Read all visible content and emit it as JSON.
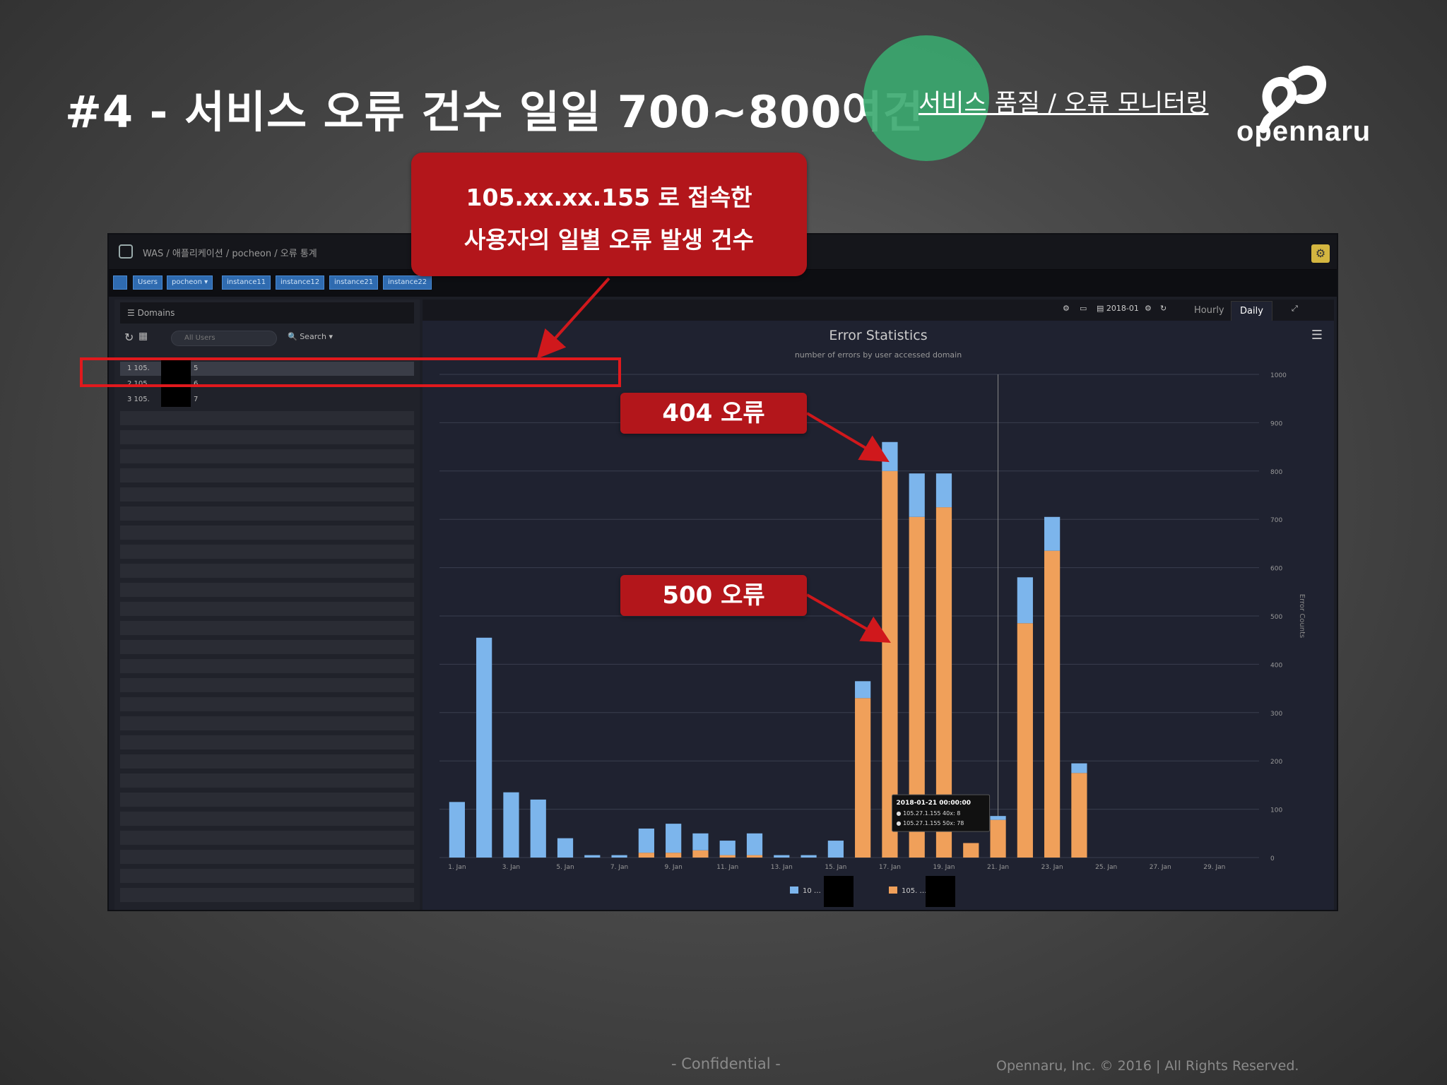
{
  "slide": {
    "title": "#4 - 서비스 오류 건수 일일 700~800여건",
    "subtitle": "서비스 품질 / 오류 모니터링",
    "logo_text": "opennaru",
    "footer_confidential": "- Confidential -",
    "footer_copyright": "Opennaru, Inc. © 2016 | All Rights Reserved."
  },
  "callouts": {
    "main_line1": "105.xx.xx.155 로 접속한",
    "main_line2": "사용자의 일별 오류 발생 건수",
    "c404": "404 오류",
    "c500": "500 오류"
  },
  "app": {
    "breadcrumb": "WAS / 애플리케이션 / pocheon / 오류 통계",
    "toolbar": [
      "Users",
      "pocheon ▾",
      "instance11",
      "instance12",
      "instance21",
      "instance22"
    ],
    "sidebar": {
      "header": "Domains",
      "search_placeholder": "All Users",
      "search_label": "Search ▾",
      "rows": [
        "1  105.",
        "2  105.",
        "3  105."
      ],
      "row_suffixes": [
        "5",
        "6",
        "7"
      ]
    },
    "controls": {
      "date": "2018-01",
      "tab_hourly": "Hourly",
      "tab_daily": "Daily"
    }
  },
  "chart_data": {
    "type": "bar",
    "stacked": true,
    "title": "Error Statistics",
    "subtitle": "number of errors by user accessed domain",
    "ylabel": "Error Counts",
    "ylim": [
      0,
      1000
    ],
    "yticks": [
      0,
      100,
      200,
      300,
      400,
      500,
      600,
      700,
      800,
      900,
      1000
    ],
    "x_tick_labels": [
      "1. Jan",
      "3. Jan",
      "5. Jan",
      "7. Jan",
      "9. Jan",
      "11. Jan",
      "13. Jan",
      "15. Jan",
      "17. Jan",
      "19. Jan",
      "21. Jan",
      "23. Jan",
      "25. Jan",
      "27. Jan",
      "29. Jan"
    ],
    "days": [
      1,
      2,
      3,
      4,
      5,
      6,
      7,
      8,
      9,
      10,
      11,
      12,
      13,
      14,
      15,
      16,
      17,
      18,
      19,
      20,
      21,
      22,
      23,
      24,
      25,
      26,
      27,
      28,
      29,
      30
    ],
    "series": [
      {
        "name": "105.27.1.155 50x",
        "color": "#f0a05a",
        "values": [
          0,
          0,
          0,
          0,
          0,
          0,
          0,
          10,
          10,
          15,
          5,
          5,
          0,
          0,
          0,
          330,
          800,
          705,
          725,
          30,
          78,
          485,
          635,
          175,
          0,
          0,
          0,
          0,
          0,
          0
        ]
      },
      {
        "name": "105.27.1.155 40x",
        "color": "#7cb5ec",
        "values": [
          115,
          455,
          135,
          120,
          40,
          5,
          5,
          50,
          60,
          35,
          30,
          45,
          5,
          5,
          35,
          35,
          60,
          90,
          70,
          0,
          8,
          95,
          70,
          20,
          0,
          0,
          0,
          0,
          0,
          0
        ]
      }
    ],
    "legend": [
      "10 … 155 40x",
      "105. … 5 50x"
    ],
    "tooltip": {
      "title": "2018-01-21 00:00:00",
      "line1": "● 105.27.1.155 40x: 8",
      "line2": "● 105.27.1.155 50x: 78"
    }
  }
}
